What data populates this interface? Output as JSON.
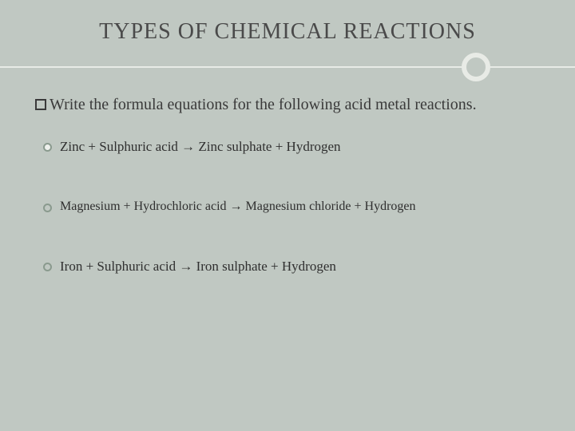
{
  "colors": {
    "background": "#c0c8c2",
    "divider": "#e8ebe6",
    "text": "#3a3a3a",
    "bullet_ring": "#8a9a8e",
    "bullet_fill": "#eef0ec"
  },
  "typography": {
    "title_fontsize": 28,
    "prompt_fontsize": 20,
    "item_fontsize": 17,
    "font_family": "Georgia, serif"
  },
  "title": "TYPES OF CHEMICAL REACTIONS",
  "prompt": "Write the formula equations for the following acid metal reactions.",
  "items": [
    {
      "bullet": "filled",
      "text": "Zinc + Sulphuric acid → Zinc sulphate + Hydrogen"
    },
    {
      "bullet": "open",
      "text": "Magnesium + Hydrochloric acid → Magnesium chloride + Hydrogen"
    },
    {
      "bullet": "open",
      "text": "Iron + Sulphuric acid → Iron sulphate + Hydrogen"
    }
  ]
}
